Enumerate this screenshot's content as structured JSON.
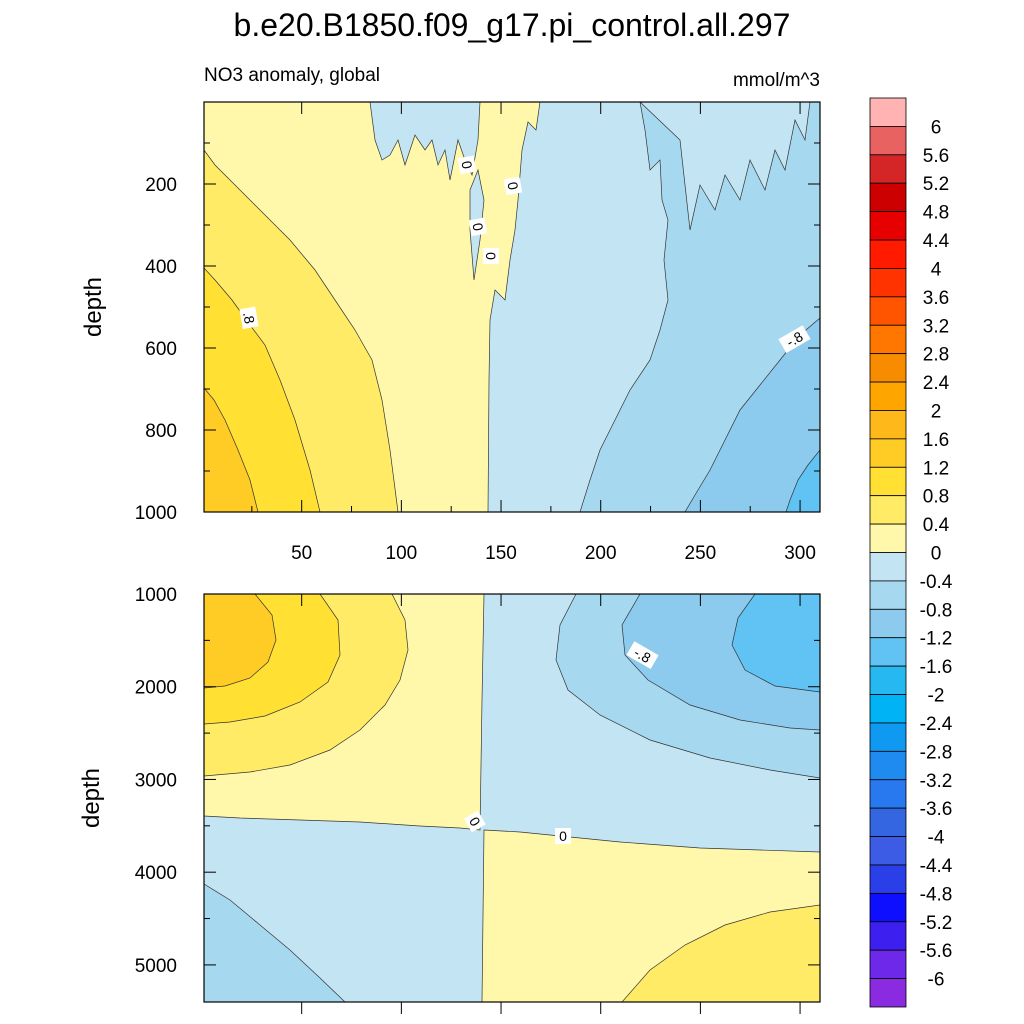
{
  "chart_data": {
    "type": "contour",
    "title": "b.e20.B1850.f09_g17.pi_control.all.297",
    "left_string": "NO3 anomaly, global",
    "right_string": "mmol/m^3",
    "panels": [
      {
        "name": "upper",
        "ylabel": "depth",
        "ylim": [
          1000,
          0
        ],
        "xlim": [
          1,
          310
        ],
        "x_ticks": [
          "50",
          "100",
          "150",
          "200",
          "250",
          "300"
        ],
        "y_ticks": [
          "200",
          "400",
          "600",
          "800",
          "1000"
        ],
        "contour_labels": [
          "0",
          "0",
          "0",
          "0",
          "-.8",
          ".8"
        ]
      },
      {
        "name": "lower",
        "ylabel": "depth",
        "ylim": [
          5400,
          1000
        ],
        "xlim": [
          1,
          310
        ],
        "y_ticks": [
          "1000",
          "2000",
          "3000",
          "4000",
          "5000"
        ],
        "contour_labels": [
          "0",
          "0",
          "-.8"
        ]
      }
    ],
    "colorbar": {
      "labels": [
        "6",
        "5.6",
        "5.2",
        "4.8",
        "4.4",
        "4",
        "3.6",
        "3.2",
        "2.8",
        "2.4",
        "2",
        "1.6",
        "1.2",
        "0.8",
        "0.4",
        "0",
        "-0.4",
        "-0.8",
        "-1.2",
        "-1.6",
        "-2",
        "-2.4",
        "-2.8",
        "-3.2",
        "-3.6",
        "-4",
        "-4.4",
        "-4.8",
        "-5.2",
        "-5.6",
        "-6"
      ],
      "colors": [
        "#FFB3B3",
        "#E86262",
        "#D42626",
        "#CC0000",
        "#E60000",
        "#FF1A00",
        "#FF3300",
        "#FF5500",
        "#FF7700",
        "#F78C00",
        "#FFA500",
        "#FFB81A",
        "#FFCC26",
        "#FFE033",
        "#FFEB66",
        "#FFF8AA",
        "#C3E5F3",
        "#A6D9F0",
        "#8CCAEE",
        "#60C3F3",
        "#26B8F0",
        "#00B3F5",
        "#0F99F0",
        "#1F8AF0",
        "#2878F0",
        "#3366E0",
        "#3D5CE6",
        "#2A3FE8",
        "#0F0FFF",
        "#3D1FF0",
        "#6E28EA",
        "#8A2BE2"
      ]
    }
  }
}
